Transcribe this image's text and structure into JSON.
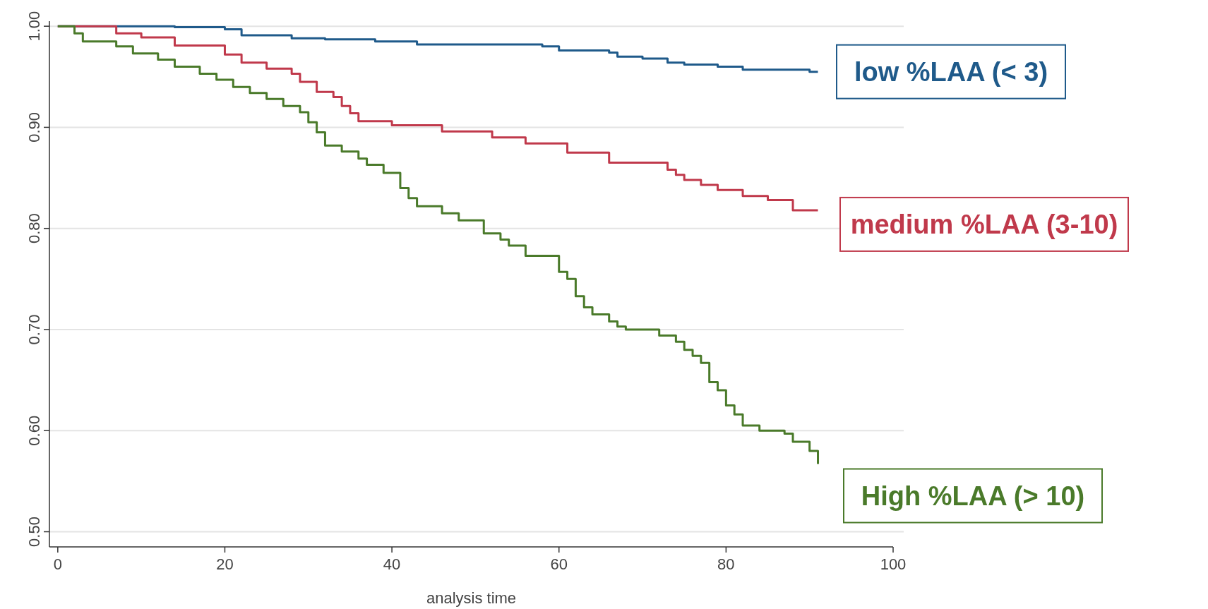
{
  "chart_data": {
    "type": "step",
    "xlabel": "analysis time",
    "xlim": [
      -1,
      100
    ],
    "xticks": [
      0,
      20,
      40,
      60,
      80,
      100
    ],
    "ylim": [
      0.485,
      1.005
    ],
    "yticks": [
      {
        "value": 0.5,
        "label": "0.50"
      },
      {
        "value": 0.6,
        "label": "0.60"
      },
      {
        "value": 0.7,
        "label": "0.70"
      },
      {
        "value": 0.8,
        "label": "0.80"
      },
      {
        "value": 0.9,
        "label": "0.90"
      },
      {
        "value": 1.0,
        "label": "1.00"
      }
    ],
    "grid": "y",
    "legend": false,
    "series": [
      {
        "name": "low %LAA (< 3)",
        "color": "#1f5a8a",
        "x": [
          0,
          14,
          20,
          22,
          28,
          32,
          38,
          43,
          58,
          60,
          66,
          67,
          70,
          73,
          75,
          79,
          82,
          90,
          91
        ],
        "values": [
          1.0,
          0.999,
          0.997,
          0.991,
          0.988,
          0.987,
          0.985,
          0.982,
          0.98,
          0.976,
          0.974,
          0.97,
          0.968,
          0.964,
          0.962,
          0.96,
          0.957,
          0.955,
          0.955
        ]
      },
      {
        "name": "medium %LAA (3-10)",
        "color": "#c0394b",
        "x": [
          0,
          7,
          10,
          14,
          20,
          22,
          25,
          28,
          29,
          31,
          33,
          34,
          35,
          36,
          40,
          46,
          52,
          56,
          61,
          66,
          73,
          74,
          75,
          77,
          79,
          82,
          85,
          88,
          91
        ],
        "values": [
          1.0,
          0.993,
          0.989,
          0.981,
          0.972,
          0.964,
          0.958,
          0.953,
          0.945,
          0.935,
          0.93,
          0.921,
          0.914,
          0.906,
          0.902,
          0.896,
          0.89,
          0.884,
          0.875,
          0.865,
          0.858,
          0.853,
          0.848,
          0.843,
          0.838,
          0.832,
          0.828,
          0.818,
          0.818
        ]
      },
      {
        "name": "High %LAA (> 10)",
        "color": "#4a7a2a",
        "x": [
          0,
          2,
          3,
          7,
          9,
          12,
          14,
          17,
          19,
          21,
          23,
          25,
          27,
          29,
          30,
          31,
          32,
          34,
          36,
          37,
          39,
          41,
          42,
          43,
          46,
          48,
          51,
          53,
          54,
          56,
          60,
          61,
          62,
          63,
          64,
          66,
          67,
          68,
          72,
          74,
          75,
          76,
          77,
          78,
          79,
          80,
          81,
          82,
          84,
          87,
          88,
          90,
          91
        ],
        "values": [
          1.0,
          0.993,
          0.985,
          0.98,
          0.973,
          0.967,
          0.96,
          0.953,
          0.947,
          0.94,
          0.934,
          0.928,
          0.921,
          0.915,
          0.905,
          0.895,
          0.882,
          0.876,
          0.869,
          0.863,
          0.855,
          0.84,
          0.83,
          0.822,
          0.815,
          0.808,
          0.795,
          0.789,
          0.783,
          0.773,
          0.757,
          0.75,
          0.733,
          0.722,
          0.715,
          0.708,
          0.703,
          0.7,
          0.694,
          0.688,
          0.68,
          0.674,
          0.667,
          0.648,
          0.64,
          0.625,
          0.616,
          0.605,
          0.6,
          0.597,
          0.589,
          0.58,
          0.567
        ]
      }
    ]
  }
}
